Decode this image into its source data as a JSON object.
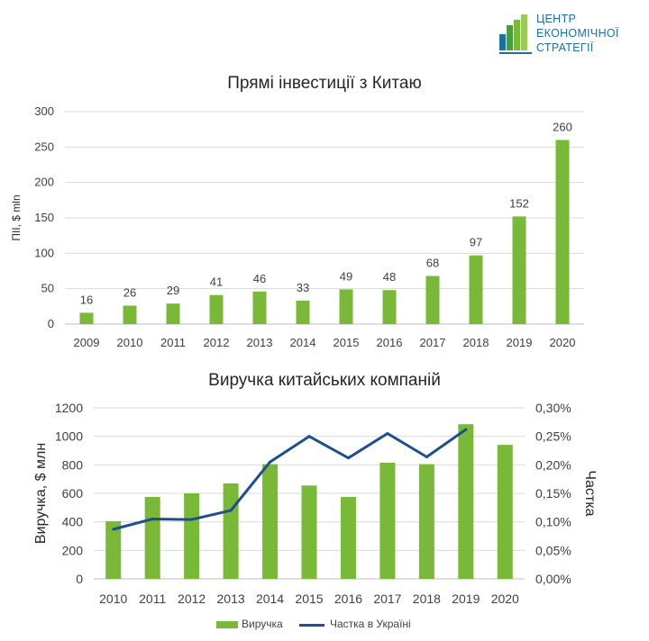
{
  "logo": {
    "lines": [
      "ЦЕНТР",
      "ЕКОНОМІЧНОЇ",
      "СТРАТЕГІЇ"
    ],
    "colors": [
      "#1f6e9e",
      "#4a9a46",
      "#7ab83a",
      "#9cc95c"
    ]
  },
  "chart_data": [
    {
      "type": "bar",
      "title": "Прямі інвестиції з Китаю",
      "xlabel": "",
      "ylabel": "ПІІ, $ mln",
      "ylim": [
        0,
        300
      ],
      "yticks": [
        "0",
        "50",
        "100",
        "150",
        "200",
        "250",
        "300"
      ],
      "categories": [
        "2009",
        "2010",
        "2011",
        "2012",
        "2013",
        "2014",
        "2015",
        "2016",
        "2017",
        "2018",
        "2019",
        "2020"
      ],
      "values": [
        16,
        26,
        29,
        41,
        46,
        33,
        49,
        48,
        68,
        97,
        152,
        260
      ],
      "value_labels": [
        "16",
        "26",
        "29",
        "41",
        "46",
        "33",
        "49",
        "48",
        "68",
        "97",
        "152",
        "260"
      ],
      "grid": true,
      "color": "#7ab83a"
    },
    {
      "type": "bar",
      "title": "Виручка китайських компаній",
      "xlabel": "",
      "ylabel": "Виручка, $ млн",
      "ylabel_right": "Частка",
      "ylim": [
        0,
        1200
      ],
      "ylim_right": [
        0,
        0.3
      ],
      "yticks": [
        "0",
        "200",
        "400",
        "600",
        "800",
        "1000",
        "1200"
      ],
      "yticks_right": [
        "0,00%",
        "0,05%",
        "0,10%",
        "0,15%",
        "0,20%",
        "0,25%",
        "0,30%"
      ],
      "categories": [
        "2010",
        "2011",
        "2012",
        "2013",
        "2014",
        "2015",
        "2016",
        "2017",
        "2018",
        "2019",
        "2020"
      ],
      "series": [
        {
          "name": "Виручка",
          "type": "bar",
          "axis": "left",
          "color": "#7ab83a",
          "values": [
            405,
            575,
            600,
            670,
            805,
            655,
            575,
            815,
            805,
            1085,
            940
          ]
        },
        {
          "name": "Частка в Україні",
          "type": "line",
          "axis": "right",
          "color": "#1f4e8c",
          "values": [
            0.087,
            0.105,
            0.104,
            0.12,
            0.205,
            0.25,
            0.212,
            0.255,
            0.214,
            0.262,
            null
          ]
        }
      ],
      "grid": true,
      "legend_position": "bottom"
    }
  ]
}
